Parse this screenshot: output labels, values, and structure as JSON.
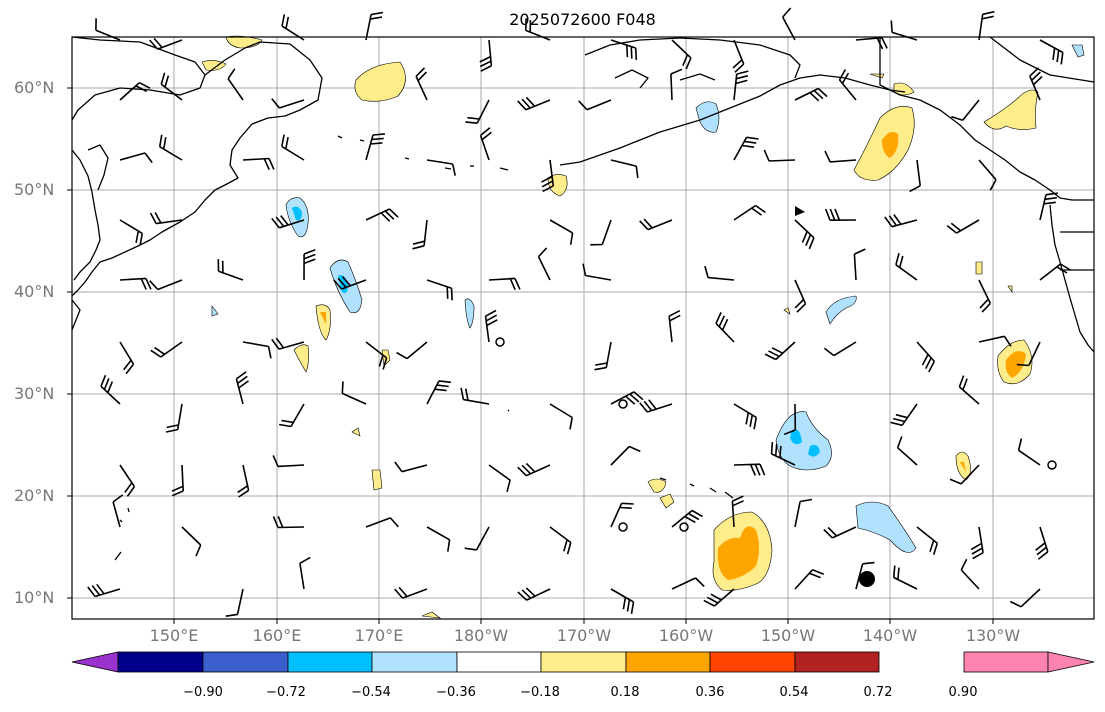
{
  "title": "2025072600 F048",
  "lat_labels": [
    "60°N",
    "50°N",
    "40°N",
    "30°N",
    "20°N",
    "10°N"
  ],
  "lon_labels": [
    "150°E",
    "160°E",
    "170°E",
    "180°W",
    "170°W",
    "160°W",
    "150°W",
    "140°W",
    "130°W"
  ],
  "colorbar": {
    "ticks": [
      "−0.90",
      "−0.72",
      "−0.54",
      "−0.36",
      "−0.18",
      "0.18",
      "0.36",
      "0.54",
      "0.72",
      "0.90"
    ],
    "colors": [
      "#9a32cd",
      "#00008b",
      "#3a5fcd",
      "#00bfff",
      "#b0e2ff",
      "#ffffff",
      "#ffec8b",
      "#ffa500",
      "#ff4500",
      "#b22222",
      "#ff83b0"
    ]
  },
  "fill_colors": {
    "light_blue": "#b0e2ff",
    "blue": "#00bfff",
    "light_yellow": "#ffec8b",
    "orange": "#ffa500"
  }
}
